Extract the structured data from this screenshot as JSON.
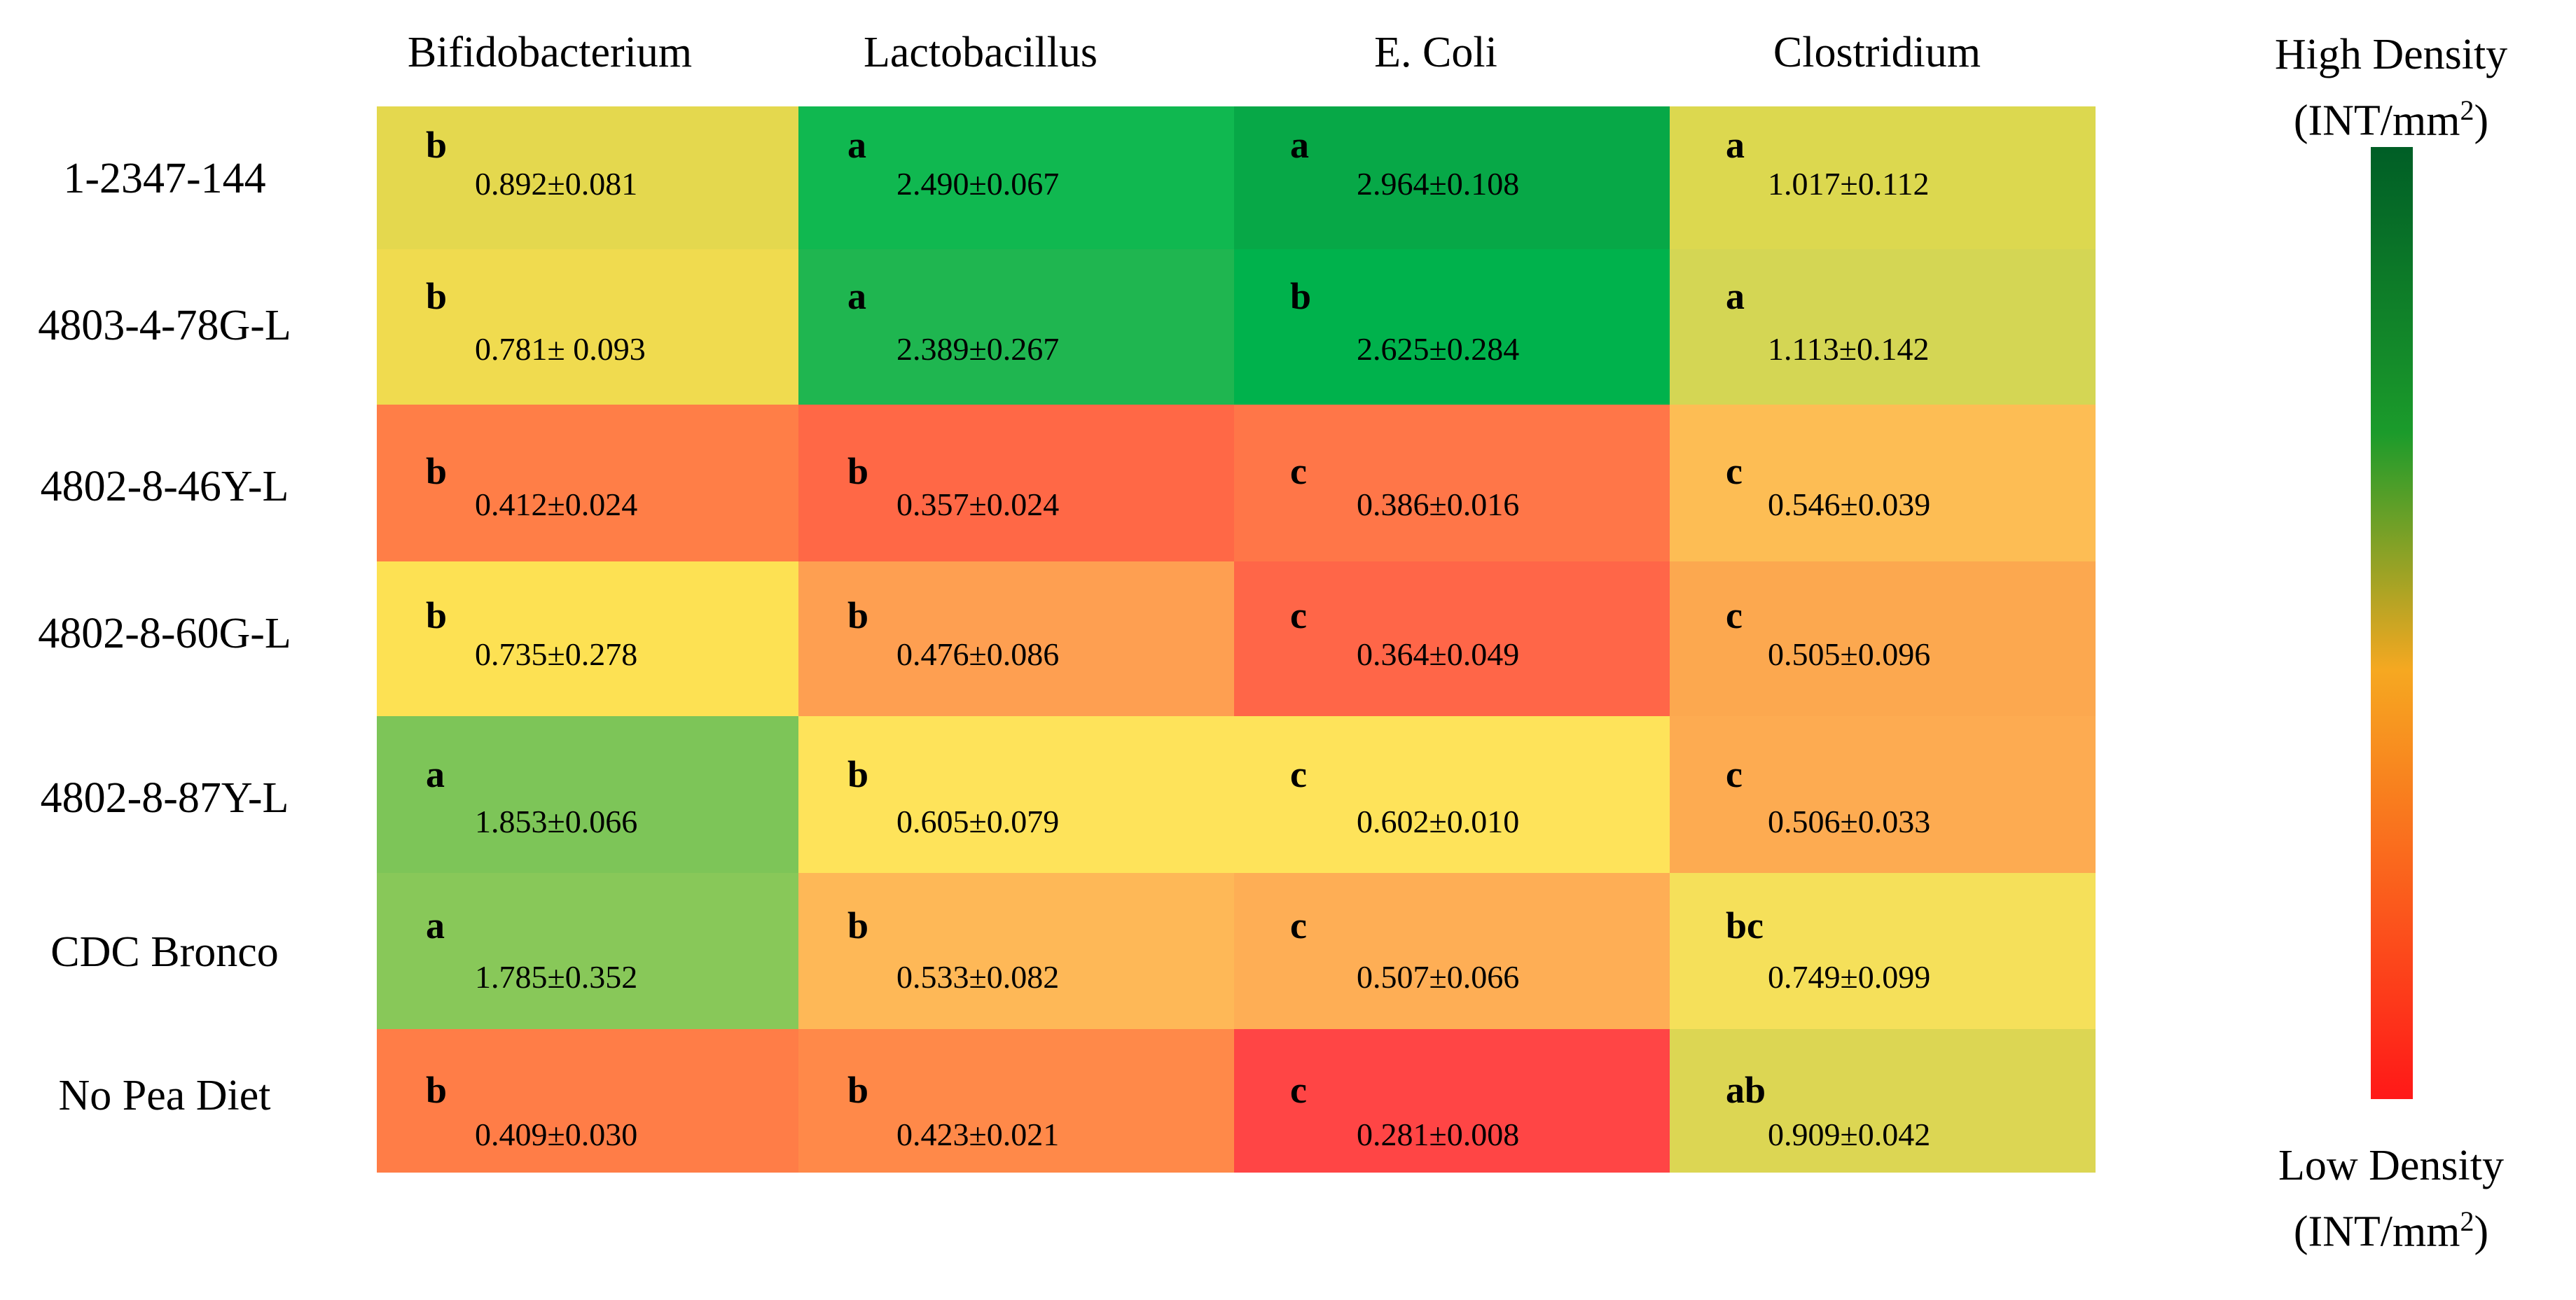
{
  "chart_data": {
    "type": "heatmap",
    "columns": [
      "Bifidobacterium",
      "Lactobacillus",
      "E. Coli",
      "Clostridium"
    ],
    "rows": [
      "1-2347-144",
      "4803-4-78G-L",
      "4802-8-46Y-L",
      "4802-8-60G-L",
      "4802-8-87Y-L",
      "CDC Bronco",
      "No Pea Diet"
    ],
    "cells": [
      [
        {
          "letter": "b",
          "value": "0.892±0.081",
          "color": "#e4d84e"
        },
        {
          "letter": "a",
          "value": "2.490±0.067",
          "color": "#10b850"
        },
        {
          "letter": "a",
          "value": "2.964±0.108",
          "color": "#07a847"
        },
        {
          "letter": "a",
          "value": "1.017±0.112",
          "color": "#dcd84f"
        }
      ],
      [
        {
          "letter": "b",
          "value": "0.781± 0.093",
          "color": "#f0db4f"
        },
        {
          "letter": "a",
          "value": "2.389±0.267",
          "color": "#1fb650"
        },
        {
          "letter": "b",
          "value": "2.625±0.284",
          "color": "#00b24c"
        },
        {
          "letter": "a",
          "value": "1.113±0.142",
          "color": "#d4d654"
        }
      ],
      [
        {
          "letter": "b",
          "value": "0.412±0.024",
          "color": "#ff7e47"
        },
        {
          "letter": "b",
          "value": "0.357±0.024",
          "color": "#ff6846"
        },
        {
          "letter": "c",
          "value": "0.386±0.016",
          "color": "#ff7648"
        },
        {
          "letter": "c",
          "value": "0.546±0.039",
          "color": "#fdbd54"
        }
      ],
      [
        {
          "letter": "b",
          "value": "0.735±0.278",
          "color": "#fde153"
        },
        {
          "letter": "b",
          "value": "0.476±0.086",
          "color": "#fe9f51"
        },
        {
          "letter": "c",
          "value": "0.364±0.049",
          "color": "#ff6648"
        },
        {
          "letter": "c",
          "value": "0.505±0.096",
          "color": "#fca84f"
        }
      ],
      [
        {
          "letter": "a",
          "value": "1.853±0.066",
          "color": "#7dc558"
        },
        {
          "letter": "b",
          "value": "0.605±0.079",
          "color": "#fee35a"
        },
        {
          "letter": "c",
          "value": "0.602±0.010",
          "color": "#fee35a"
        },
        {
          "letter": "c",
          "value": "0.506±0.033",
          "color": "#fdab51"
        }
      ],
      [
        {
          "letter": "a",
          "value": "1.785±0.352",
          "color": "#88c859"
        },
        {
          "letter": "b",
          "value": "0.533±0.082",
          "color": "#feb857"
        },
        {
          "letter": "c",
          "value": "0.507±0.066",
          "color": "#feae55"
        },
        {
          "letter": "bc",
          "value": "0.749±0.099",
          "color": "#f5e05a"
        }
      ],
      [
        {
          "letter": "b",
          "value": "0.409±0.030",
          "color": "#ff7d47"
        },
        {
          "letter": "b",
          "value": "0.423±0.021",
          "color": "#ff8949"
        },
        {
          "letter": "c",
          "value": "0.281±0.008",
          "color": "#ff4545"
        },
        {
          "letter": "ab",
          "value": "0.909±0.042",
          "color": "#dcd653"
        }
      ]
    ],
    "legend": {
      "high_label": "High Density",
      "low_label": "Low Density",
      "unit_base": "(INT/mm",
      "unit_exp": "2",
      "unit_close": ")",
      "gradient": [
        "#005e26",
        "#1b9b2b",
        "#f6a821",
        "#ff1818"
      ]
    }
  }
}
